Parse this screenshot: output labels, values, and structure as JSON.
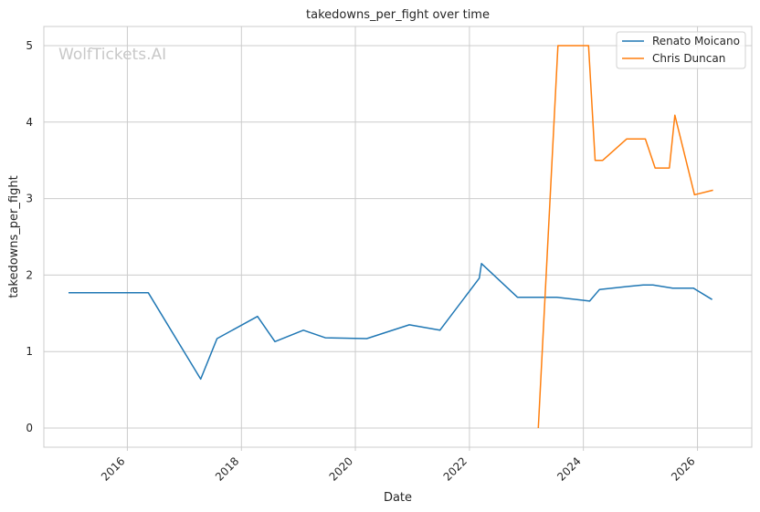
{
  "chart_data": {
    "type": "line",
    "title": "takedowns_per_fight over time",
    "xlabel": "Date",
    "ylabel": "takedowns_per_fight",
    "watermark": "WolfTickets.AI",
    "x_ticks": [
      "2016",
      "2018",
      "2020",
      "2022",
      "2024",
      "2026"
    ],
    "y_ticks": [
      "0",
      "1",
      "2",
      "3",
      "4",
      "5"
    ],
    "xlim": [
      "2014-07-15",
      "2026-12-15"
    ],
    "ylim": [
      -0.25,
      5.25
    ],
    "grid": true,
    "legend_position": "top-right",
    "series": [
      {
        "name": "Renato Moicano",
        "color": "#1f77b4",
        "points": [
          [
            "2014-12-20",
            1.77
          ],
          [
            "2016-05-14",
            1.77
          ],
          [
            "2017-04-15",
            0.64
          ],
          [
            "2017-07-29",
            1.17
          ],
          [
            "2018-04-14",
            1.46
          ],
          [
            "2018-08-04",
            1.13
          ],
          [
            "2019-02-02",
            1.28
          ],
          [
            "2019-06-22",
            1.18
          ],
          [
            "2020-03-14",
            1.17
          ],
          [
            "2020-12-12",
            1.35
          ],
          [
            "2021-06-26",
            1.28
          ],
          [
            "2022-03-05",
            1.96
          ],
          [
            "2022-03-19",
            2.15
          ],
          [
            "2022-11-05",
            1.71
          ],
          [
            "2023-07-15",
            1.71
          ],
          [
            "2024-02-10",
            1.66
          ],
          [
            "2024-04-13",
            1.81
          ],
          [
            "2024-10-05",
            1.85
          ],
          [
            "2025-01-18",
            1.87
          ],
          [
            "2025-03-22",
            1.87
          ],
          [
            "2025-07-26",
            1.83
          ],
          [
            "2025-12-06",
            1.83
          ],
          [
            "2026-04-05",
            1.68
          ]
        ]
      },
      {
        "name": "Chris Duncan",
        "color": "#ff7f0e",
        "points": [
          [
            "2023-03-18",
            0.0
          ],
          [
            "2023-07-22",
            5.0
          ],
          [
            "2024-02-03",
            5.0
          ],
          [
            "2024-03-16",
            3.5
          ],
          [
            "2024-05-04",
            3.5
          ],
          [
            "2024-10-05",
            3.78
          ],
          [
            "2025-02-01",
            3.78
          ],
          [
            "2025-04-05",
            3.4
          ],
          [
            "2025-07-05",
            3.4
          ],
          [
            "2025-08-09",
            4.09
          ],
          [
            "2025-12-13",
            3.05
          ],
          [
            "2026-04-11",
            3.11
          ]
        ]
      }
    ]
  }
}
